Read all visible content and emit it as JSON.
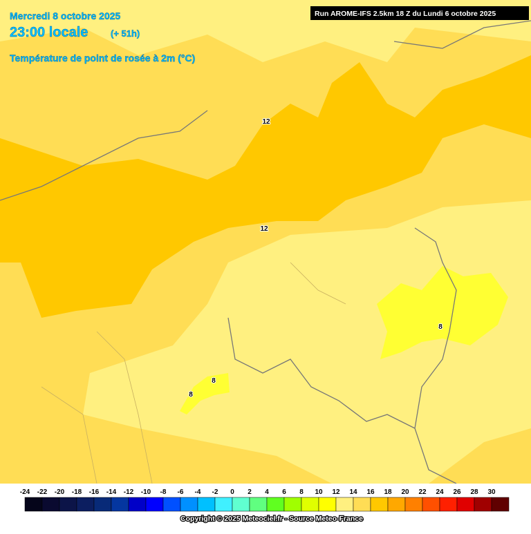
{
  "header": {
    "date": "Mercredi 8 octobre 2025",
    "time": "23:00 locale",
    "offset": "(+ 51h)",
    "parameter": "Température de point de rosée à 2m (°C)",
    "run": "Run AROME-IFS 2.5km 18 Z du Lundi 6 octobre 2025"
  },
  "contour_labels": [
    "12",
    "12",
    "8",
    "8",
    "8"
  ],
  "colorbar": {
    "ticks": [
      -24,
      -22,
      -20,
      -18,
      -16,
      -14,
      -12,
      -10,
      -8,
      -6,
      -4,
      -2,
      0,
      2,
      4,
      6,
      8,
      10,
      12,
      14,
      16,
      18,
      20,
      22,
      24,
      26,
      28,
      30
    ],
    "colors": [
      "#05051a",
      "#0a0a30",
      "#0c1448",
      "#0c1e60",
      "#082a78",
      "#0436a0",
      "#0000c8",
      "#0000ff",
      "#0050ff",
      "#0090ff",
      "#00c0ff",
      "#40f0ff",
      "#60ffd0",
      "#60ff80",
      "#60ff20",
      "#a0ff00",
      "#e0ff00",
      "#ffff00",
      "#fff080",
      "#ffdd55",
      "#ffc800",
      "#ffa800",
      "#ff8000",
      "#ff5000",
      "#ff2000",
      "#e00000",
      "#a00000",
      "#600000"
    ]
  },
  "footer": {
    "copyright": "Copyright © 2025 Meteociel.fr - Source Meteo-France"
  }
}
